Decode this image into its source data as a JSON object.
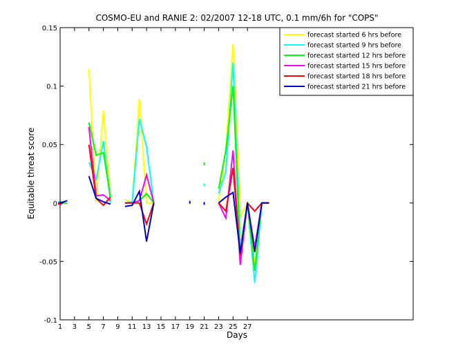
{
  "chart_data": {
    "type": "line",
    "title": "COSMO-EU and RANIE 2: 02/2007 12-18 UTC, 0.1 mm/6h for \"COPS\"",
    "xlabel": "Days",
    "ylabel": "Equitable threat score",
    "xlim": [
      1,
      50
    ],
    "ylim": [
      -0.1,
      0.15
    ],
    "xticks": [
      1,
      3,
      5,
      7,
      9,
      11,
      13,
      15,
      17,
      19,
      21,
      23,
      25,
      27
    ],
    "yticks": [
      -0.1,
      -0.05,
      0,
      0.05,
      0.1,
      0.15
    ],
    "ytick_labels": [
      "-0.1",
      "-0.05",
      "0",
      "0.05",
      "0.1",
      "0.15"
    ],
    "legend_position": "top-right",
    "grid": false,
    "series": [
      {
        "name": "forecast started 6 hrs before",
        "color": "#ffff00",
        "x": [
          1,
          2,
          5,
          6,
          7,
          8,
          10,
          11,
          12,
          13,
          14,
          23,
          24,
          25,
          26,
          27,
          28,
          29,
          30
        ],
        "y": [
          0.001,
          null,
          0.115,
          0.001,
          0.079,
          0.003,
          0.003,
          0.0,
          0.089,
          0.0,
          0.0,
          0.001,
          0.047,
          0.136,
          -0.012,
          0.0,
          -0.053,
          0.0,
          0.0
        ]
      },
      {
        "name": "forecast started 9 hrs before",
        "color": "#00ffff",
        "x": [
          1,
          2,
          5,
          6,
          7,
          8,
          10,
          11,
          12,
          13,
          14,
          23,
          24,
          25,
          26,
          27,
          28,
          29,
          30
        ],
        "y": [
          0.001,
          null,
          0.035,
          0.02,
          0.053,
          0.0,
          0.0,
          0.001,
          0.072,
          0.048,
          0.0,
          0.008,
          0.027,
          0.12,
          -0.038,
          0.0,
          -0.068,
          0.0,
          0.0
        ]
      },
      {
        "name": "forecast started 12 hrs before",
        "color": "#00ff00",
        "x": [
          1,
          2,
          5,
          6,
          7,
          8,
          10,
          11,
          12,
          13,
          14,
          23,
          24,
          25,
          26,
          27,
          28,
          29,
          30
        ],
        "y": [
          0.0,
          0.0,
          0.069,
          0.041,
          0.043,
          0.005,
          0.0,
          0.0,
          0.002,
          0.008,
          0.0,
          0.012,
          0.045,
          0.1,
          -0.042,
          0.0,
          -0.058,
          0.0,
          0.0
        ]
      },
      {
        "name": "forecast started 15 hrs before",
        "color": "#ff00ff",
        "x": [
          1,
          2,
          5,
          6,
          7,
          8,
          10,
          11,
          12,
          13,
          14,
          23,
          24,
          25,
          26,
          27,
          28,
          29,
          30
        ],
        "y": [
          -0.001,
          null,
          0.065,
          0.006,
          0.007,
          0.002,
          0.0,
          0.0,
          0.002,
          0.024,
          0.0,
          0.0,
          -0.013,
          0.045,
          -0.053,
          0.0,
          -0.038,
          0.0,
          0.0
        ]
      },
      {
        "name": "forecast started 18 hrs before",
        "color": "#ff0000",
        "x": [
          1,
          2,
          5,
          6,
          7,
          8,
          10,
          11,
          12,
          13,
          14,
          23,
          24,
          25,
          26,
          27,
          28,
          29,
          30
        ],
        "y": [
          0.0,
          null,
          0.05,
          0.004,
          -0.002,
          0.005,
          0.0,
          0.0,
          0.0,
          -0.018,
          0.0,
          0.0,
          -0.007,
          0.03,
          -0.045,
          0.0,
          -0.007,
          0.0,
          0.0
        ]
      },
      {
        "name": "forecast started 21 hrs before",
        "color": "#0000cc",
        "x": [
          1,
          2,
          5,
          6,
          7,
          8,
          10,
          11,
          12,
          13,
          14,
          23,
          24,
          25,
          26,
          27,
          28,
          29,
          30
        ],
        "y": [
          0.0,
          0.002,
          0.023,
          0.004,
          0.001,
          -0.001,
          -0.003,
          -0.002,
          0.01,
          -0.033,
          0.0,
          0.0,
          0.005,
          0.009,
          -0.043,
          0.0,
          -0.042,
          0.0,
          0.0
        ]
      }
    ],
    "isolated_points": [
      {
        "series": "forecast started 12 hrs before",
        "x": 21,
        "y": 0.033
      },
      {
        "series": "forecast started 9 hrs before",
        "x": 21,
        "y": 0.015
      },
      {
        "series": "forecast started 21 hrs before",
        "x": 19,
        "y": 0.0
      },
      {
        "series": "forecast started 21 hrs before",
        "x": 21,
        "y": -0.001
      }
    ]
  }
}
